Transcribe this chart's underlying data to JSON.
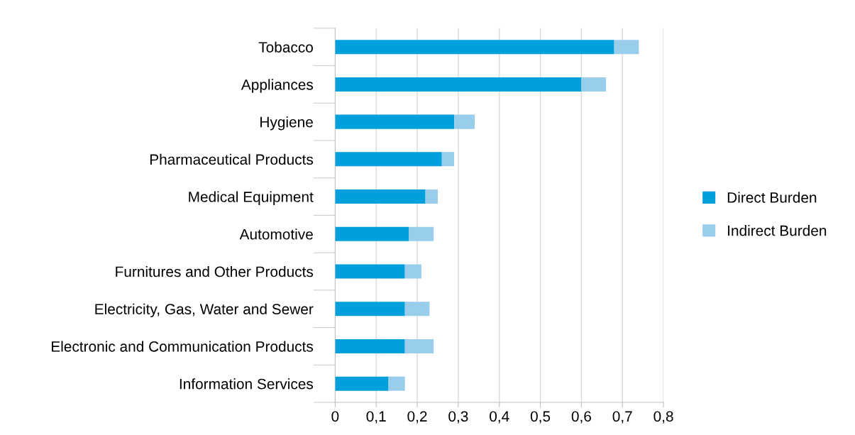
{
  "chart_data": {
    "type": "bar",
    "orientation": "horizontal",
    "stacked": true,
    "categories": [
      "Tobacco",
      "Appliances",
      "Hygiene",
      "Pharmaceutical Products",
      "Medical Equipment",
      "Automotive",
      "Furnitures and Other Products",
      "Electricity, Gas, Water and Sewer",
      "Electronic and Communication Products",
      "Information Services"
    ],
    "series": [
      {
        "name": "Direct Burden",
        "color": "#00a0dc",
        "values": [
          0.68,
          0.6,
          0.29,
          0.26,
          0.22,
          0.18,
          0.17,
          0.17,
          0.17,
          0.13
        ]
      },
      {
        "name": "Indirect Burden",
        "color": "#99cdec",
        "values": [
          0.06,
          0.06,
          0.05,
          0.03,
          0.03,
          0.06,
          0.04,
          0.06,
          0.07,
          0.04
        ]
      }
    ],
    "xlim": [
      0,
      0.8
    ],
    "xticks": [
      0,
      {
        "value": 0.1,
        "label": "0,1"
      },
      {
        "value": 0.2,
        "label": "0,2"
      },
      {
        "value": 0.3,
        "label": "0,3"
      },
      {
        "value": 0.4,
        "label": "0,4"
      },
      {
        "value": 0.5,
        "label": "0,5"
      },
      {
        "value": 0.6,
        "label": "0,6"
      },
      {
        "value": 0.7,
        "label": "0,7"
      },
      {
        "value": 0.8,
        "label": "0,8"
      }
    ],
    "grid": "x",
    "legend": "right"
  }
}
